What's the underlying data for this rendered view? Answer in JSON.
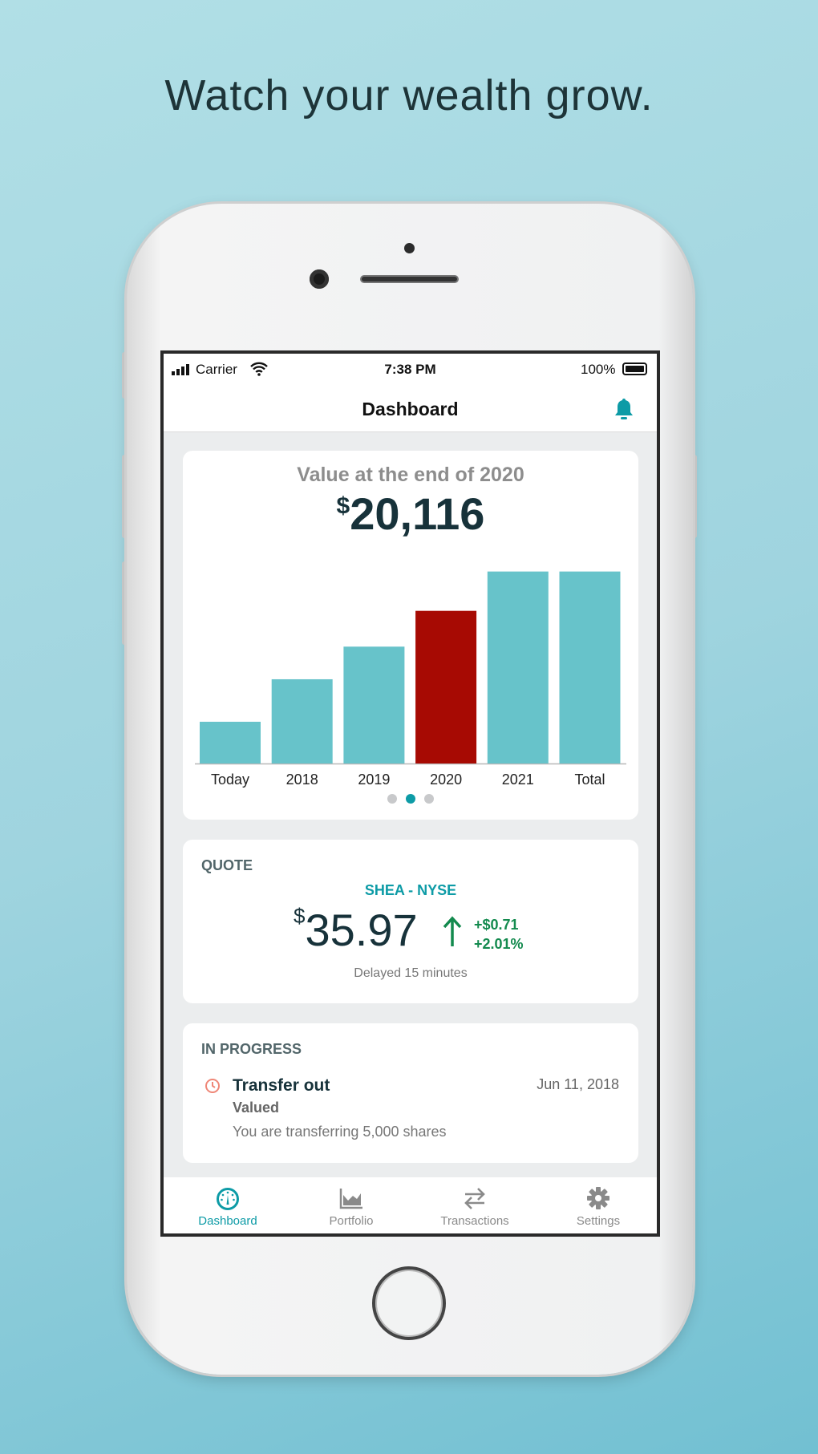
{
  "headline": "Watch your wealth grow.",
  "status": {
    "carrier": "Carrier",
    "time": "7:38 PM",
    "battery": "100%"
  },
  "nav": {
    "title": "Dashboard",
    "bell_icon": "bell-icon"
  },
  "value_card": {
    "label": "Value at the end of 2020",
    "currency": "$",
    "amount": "20,116",
    "page_index": 1,
    "page_count": 3
  },
  "chart_data": {
    "type": "bar",
    "categories": [
      "Today",
      "2018",
      "2019",
      "2020",
      "2021",
      "Total"
    ],
    "values": [
      5500,
      11100,
      15400,
      20116,
      25300,
      25300
    ],
    "highlighted": "2020",
    "colors": {
      "default": "#67c3ca",
      "highlight": "#a70a03"
    },
    "grid": false,
    "ylim": [
      0,
      26000
    ]
  },
  "quote": {
    "heading": "QUOTE",
    "symbol": "SHEA - NYSE",
    "currency": "$",
    "price": "35.97",
    "change_amount": "+$0.71",
    "change_percent": "+2.01%",
    "note": "Delayed 15 minutes",
    "trend": "up",
    "up_color": "#138a4e"
  },
  "in_progress": {
    "heading": "IN PROGRESS",
    "item": {
      "title": "Transfer out",
      "status": "Valued",
      "description": "You are transferring 5,000 shares",
      "date": "Jun 11, 2018"
    }
  },
  "tabs": [
    {
      "label": "Dashboard",
      "icon": "dashboard-gauge-icon",
      "active": true
    },
    {
      "label": "Portfolio",
      "icon": "area-chart-icon",
      "active": false
    },
    {
      "label": "Transactions",
      "icon": "transfer-arrows-icon",
      "active": false
    },
    {
      "label": "Settings",
      "icon": "gear-icon",
      "active": false
    }
  ],
  "accent": "#0d9ba6"
}
